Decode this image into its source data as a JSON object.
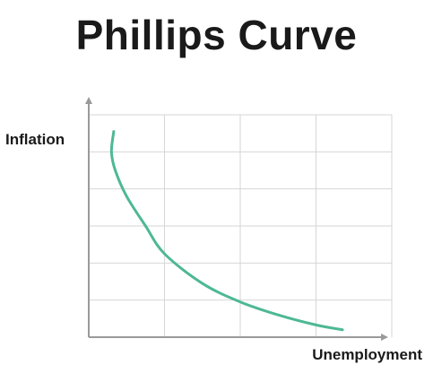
{
  "chart_data": {
    "type": "line",
    "title": "Phillips Curve",
    "xlabel": "Unemployment",
    "ylabel": "Inflation",
    "xlim": [
      0,
      4
    ],
    "ylim": [
      0,
      6
    ],
    "x_tick_labels": [],
    "y_tick_labels": [],
    "grid": true,
    "series": [
      {
        "color": "#4db895",
        "points": [
          [
            0.33,
            5.55
          ],
          [
            0.3,
            5.0
          ],
          [
            0.35,
            4.5
          ],
          [
            0.5,
            3.8
          ],
          [
            0.75,
            3.0
          ],
          [
            1.0,
            2.25
          ],
          [
            1.5,
            1.45
          ],
          [
            2.0,
            0.95
          ],
          [
            2.5,
            0.6
          ],
          [
            3.0,
            0.33
          ],
          [
            3.35,
            0.2
          ]
        ]
      }
    ]
  }
}
